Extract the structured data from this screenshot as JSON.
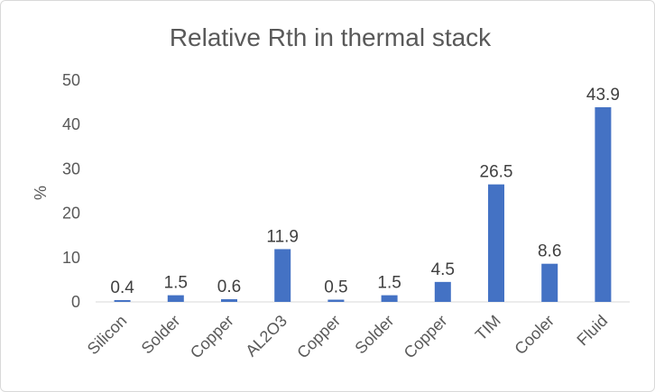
{
  "chart_data": {
    "type": "bar",
    "title": "Relative Rth in thermal stack",
    "xlabel": "",
    "ylabel": "%",
    "categories": [
      "Silicon",
      "Solder",
      "Copper",
      "AL2O3",
      "Copper",
      "Solder",
      "Copper",
      "TIM",
      "Cooler",
      "Fluid"
    ],
    "values": [
      0.4,
      1.5,
      0.6,
      11.9,
      0.5,
      1.5,
      4.5,
      26.5,
      8.6,
      43.9
    ],
    "value_labels": [
      "0.4",
      "1.5",
      "0.6",
      "11.9",
      "0.5",
      "1.5",
      "4.5",
      "26.5",
      "8.6",
      "43.9"
    ],
    "ylim": [
      0,
      50
    ],
    "yticks": [
      "0",
      "10",
      "20",
      "30",
      "40",
      "50"
    ],
    "grid": false,
    "legend": "none",
    "colors": {
      "bar": "#4472c4",
      "text": "#595959"
    }
  }
}
